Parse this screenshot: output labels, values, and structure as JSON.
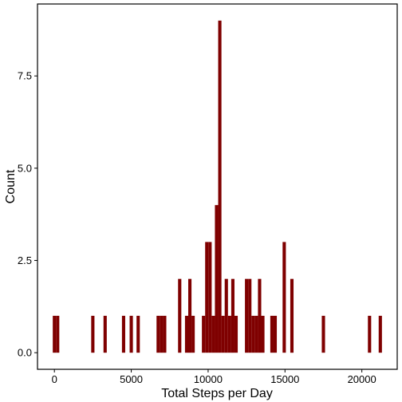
{
  "chart_data": {
    "type": "bar",
    "title": "",
    "xlabel": "Total Steps per Day",
    "ylabel": "Count",
    "xlim": [
      -1100,
      22300
    ],
    "ylim": [
      -0.45,
      9.45
    ],
    "xticks": [
      0,
      5000,
      10000,
      15000,
      20000
    ],
    "xtick_labels": [
      "0",
      "5000",
      "10000",
      "15000",
      "20000"
    ],
    "yticks": [
      0,
      2.5,
      5,
      7.5
    ],
    "ytick_labels": [
      "0.0",
      "2.5",
      "5.0",
      "7.5"
    ],
    "grid": false,
    "legend": "none",
    "bin_width": 212,
    "bins": [
      {
        "x": 0,
        "count": 1
      },
      {
        "x": 212,
        "count": 1
      },
      {
        "x": 2500,
        "count": 1
      },
      {
        "x": 3300,
        "count": 1
      },
      {
        "x": 4500,
        "count": 1
      },
      {
        "x": 5000,
        "count": 1
      },
      {
        "x": 5450,
        "count": 1
      },
      {
        "x": 6750,
        "count": 1
      },
      {
        "x": 6962,
        "count": 1
      },
      {
        "x": 7174,
        "count": 1
      },
      {
        "x": 8150,
        "count": 2
      },
      {
        "x": 8600,
        "count": 1
      },
      {
        "x": 8812,
        "count": 2
      },
      {
        "x": 9024,
        "count": 1
      },
      {
        "x": 9700,
        "count": 1
      },
      {
        "x": 9912,
        "count": 3
      },
      {
        "x": 10124,
        "count": 3
      },
      {
        "x": 10336,
        "count": 1
      },
      {
        "x": 10548,
        "count": 4
      },
      {
        "x": 10760,
        "count": 9
      },
      {
        "x": 10972,
        "count": 1
      },
      {
        "x": 11184,
        "count": 2
      },
      {
        "x": 11396,
        "count": 1
      },
      {
        "x": 11608,
        "count": 2
      },
      {
        "x": 11820,
        "count": 1
      },
      {
        "x": 12500,
        "count": 2
      },
      {
        "x": 12712,
        "count": 2
      },
      {
        "x": 12924,
        "count": 1
      },
      {
        "x": 13136,
        "count": 1
      },
      {
        "x": 13348,
        "count": 2
      },
      {
        "x": 13560,
        "count": 1
      },
      {
        "x": 14150,
        "count": 1
      },
      {
        "x": 14362,
        "count": 1
      },
      {
        "x": 14950,
        "count": 3
      },
      {
        "x": 15450,
        "count": 2
      },
      {
        "x": 17500,
        "count": 1
      },
      {
        "x": 20500,
        "count": 1
      },
      {
        "x": 21200,
        "count": 1
      }
    ],
    "colors": {
      "bar": "#7f0000",
      "axis": "#000000",
      "background": "#ffffff"
    }
  }
}
